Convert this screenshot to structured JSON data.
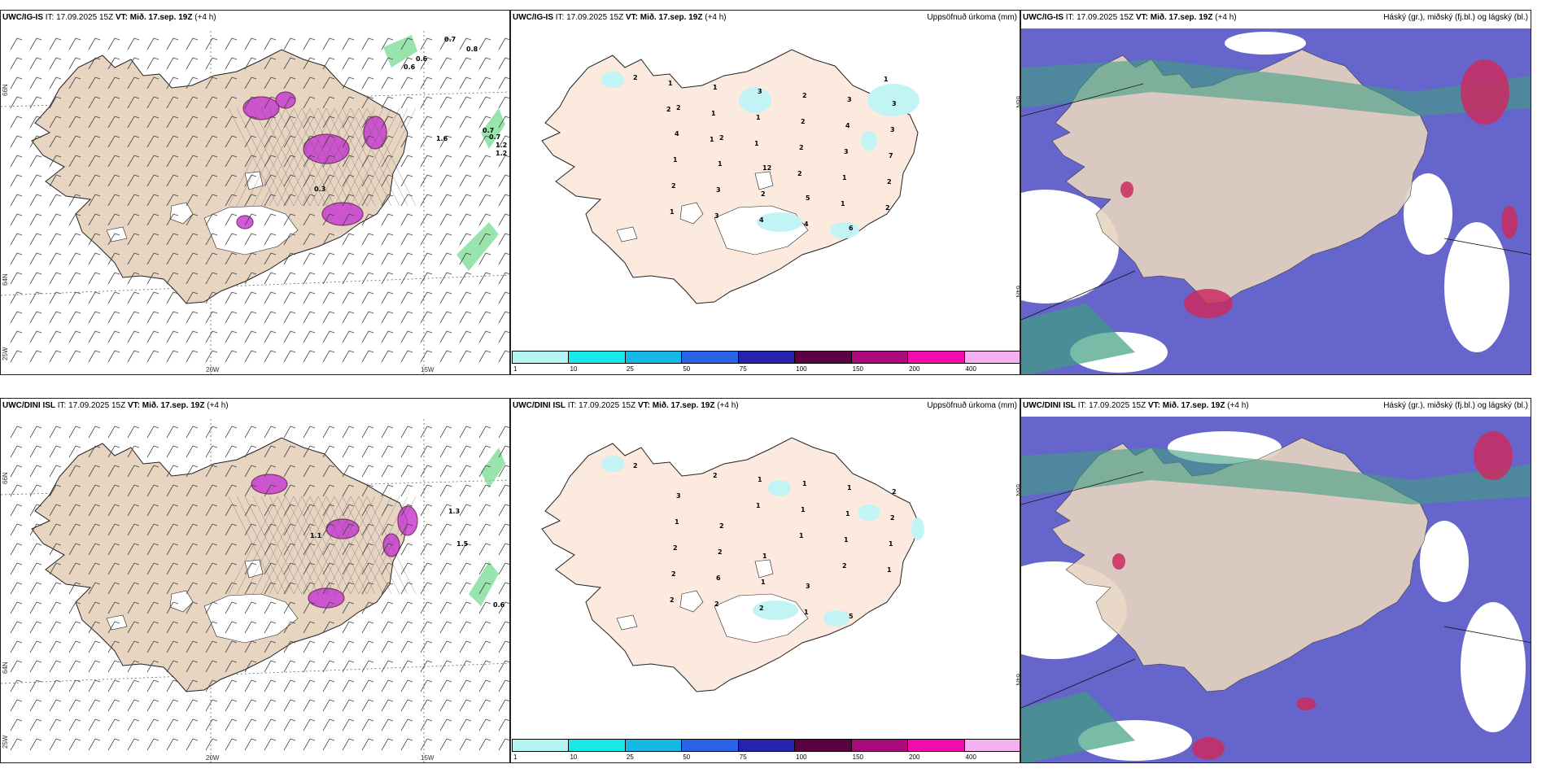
{
  "rows": [
    {
      "model": "UWC/IG-IS",
      "it": "IT: 17.09.2025 15Z",
      "vt_label": "VT:",
      "vt_value": "Mið. 17.sep. 19Z",
      "lead": "(+4 h)",
      "precip_labels": [
        "2",
        "2",
        "2",
        "12",
        "5",
        "6",
        "3",
        "4",
        "1",
        "2",
        "4",
        "3",
        "3",
        "1",
        "3",
        "4",
        "2",
        "4",
        "7",
        "2",
        "3",
        "3",
        "2",
        "3",
        "2",
        "1",
        "1",
        "1",
        "2",
        "1",
        "2",
        "1",
        "1",
        "1",
        "2",
        "1",
        "1",
        "2",
        "1"
      ],
      "wind_values": [
        "0.7",
        "0.8",
        "0.6",
        "0.6",
        "0.7",
        "0.7",
        "1.2",
        "1.2",
        "1.6",
        "0.3"
      ]
    },
    {
      "model": "UWC/DINI ISL",
      "it": "IT: 17.09.2025 15Z",
      "vt_label": "VT:",
      "vt_value": "Mið. 17.sep. 19Z",
      "lead": "(+4 h)",
      "precip_labels": [
        "2",
        "3",
        "2",
        "1",
        "3",
        "5",
        "2",
        "1",
        "2",
        "1",
        "1",
        "1",
        "2",
        "2",
        "6",
        "2",
        "1",
        "1",
        "1",
        "2",
        "2",
        "1",
        "1",
        "1",
        "1",
        "2",
        "2",
        "1",
        "1",
        "2"
      ],
      "wind_values": [
        "1.3",
        "1.5",
        "1.1",
        "0.6"
      ]
    }
  ],
  "precip_title": "Uppsöfnuð úrkoma (mm)",
  "cloud_title": "Háský (gr.), miðský (fj.bl.) og lágský (bl.)",
  "axis_labels": {
    "lat_upper": "66N",
    "lat_lower": "64N",
    "lon_left_edge": "25W",
    "lon_20": "20W",
    "lon_15": "15W"
  },
  "colorbar": {
    "ticks": [
      "1",
      "10",
      "25",
      "50",
      "75",
      "100",
      "150",
      "200",
      "400"
    ],
    "colors": [
      "#b4f5f3",
      "#19e8ea",
      "#16b9e6",
      "#2a63e6",
      "#2522ae",
      "#5c0242",
      "#aa0a7b",
      "#f20bad",
      "#f4b0ef"
    ]
  },
  "palette": {
    "land": "#e7d4c1",
    "land_light": "#fbeadd",
    "coast": "#222222",
    "purple": "#c83ed2",
    "purple_dark": "#6b1d59",
    "cyan": "#c2f4f6",
    "high_cloud": "#4a4ac2",
    "mid_cloud": "#3f9e80",
    "low_cloud": "#cb2b5f",
    "green": "#6ed88a"
  }
}
